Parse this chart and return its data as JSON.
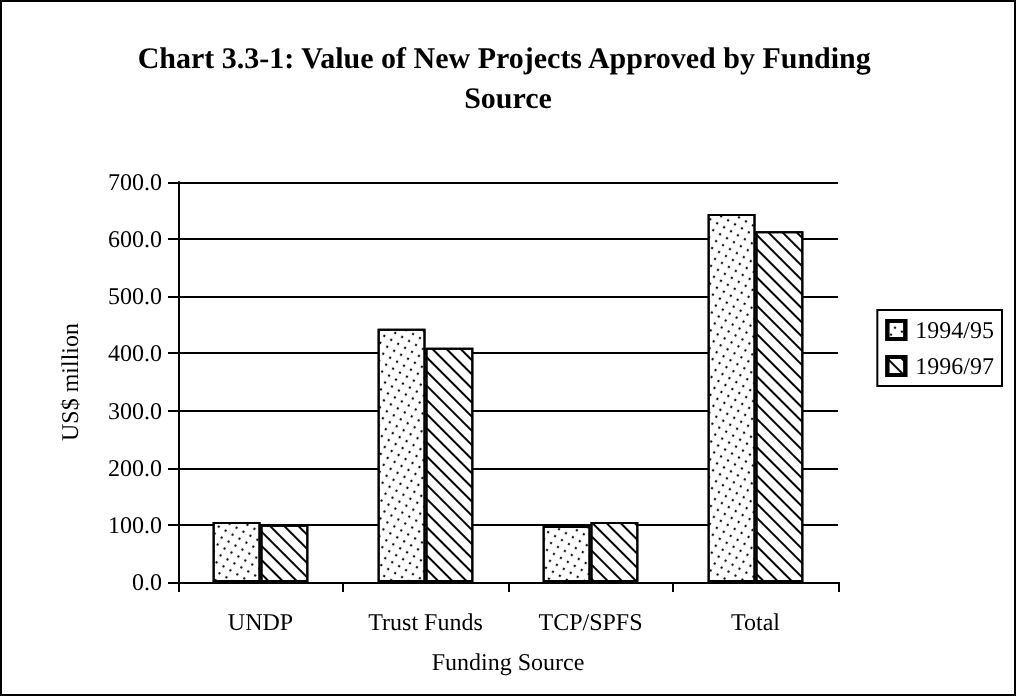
{
  "chart_data": {
    "type": "bar",
    "title": "Chart 3.3-1: Value of New Projects Approved by Funding Source",
    "xlabel": "Funding Source",
    "ylabel": "US$ million",
    "categories": [
      "UNDP",
      "Trust Funds",
      "TCP/SPFS",
      "Total"
    ],
    "series": [
      {
        "name": "1994/95",
        "color": "#ffffff",
        "values": [
          105,
          443,
          98,
          644
        ]
      },
      {
        "name": "1996/97",
        "color": "#ffffff",
        "values": [
          100,
          410,
          105,
          614
        ]
      }
    ],
    "ylim": [
      0,
      700
    ],
    "yticks": [
      {
        "value": 0,
        "label": "0.0"
      },
      {
        "value": 100,
        "label": "100.0"
      },
      {
        "value": 200,
        "label": "200.0"
      },
      {
        "value": 300,
        "label": "300.0"
      },
      {
        "value": 400,
        "label": "400.0"
      },
      {
        "value": 500,
        "label": "500.0"
      },
      {
        "value": 600,
        "label": "600.0"
      },
      {
        "value": 700,
        "label": "700.0"
      }
    ],
    "grid": "y",
    "legend": "right"
  }
}
